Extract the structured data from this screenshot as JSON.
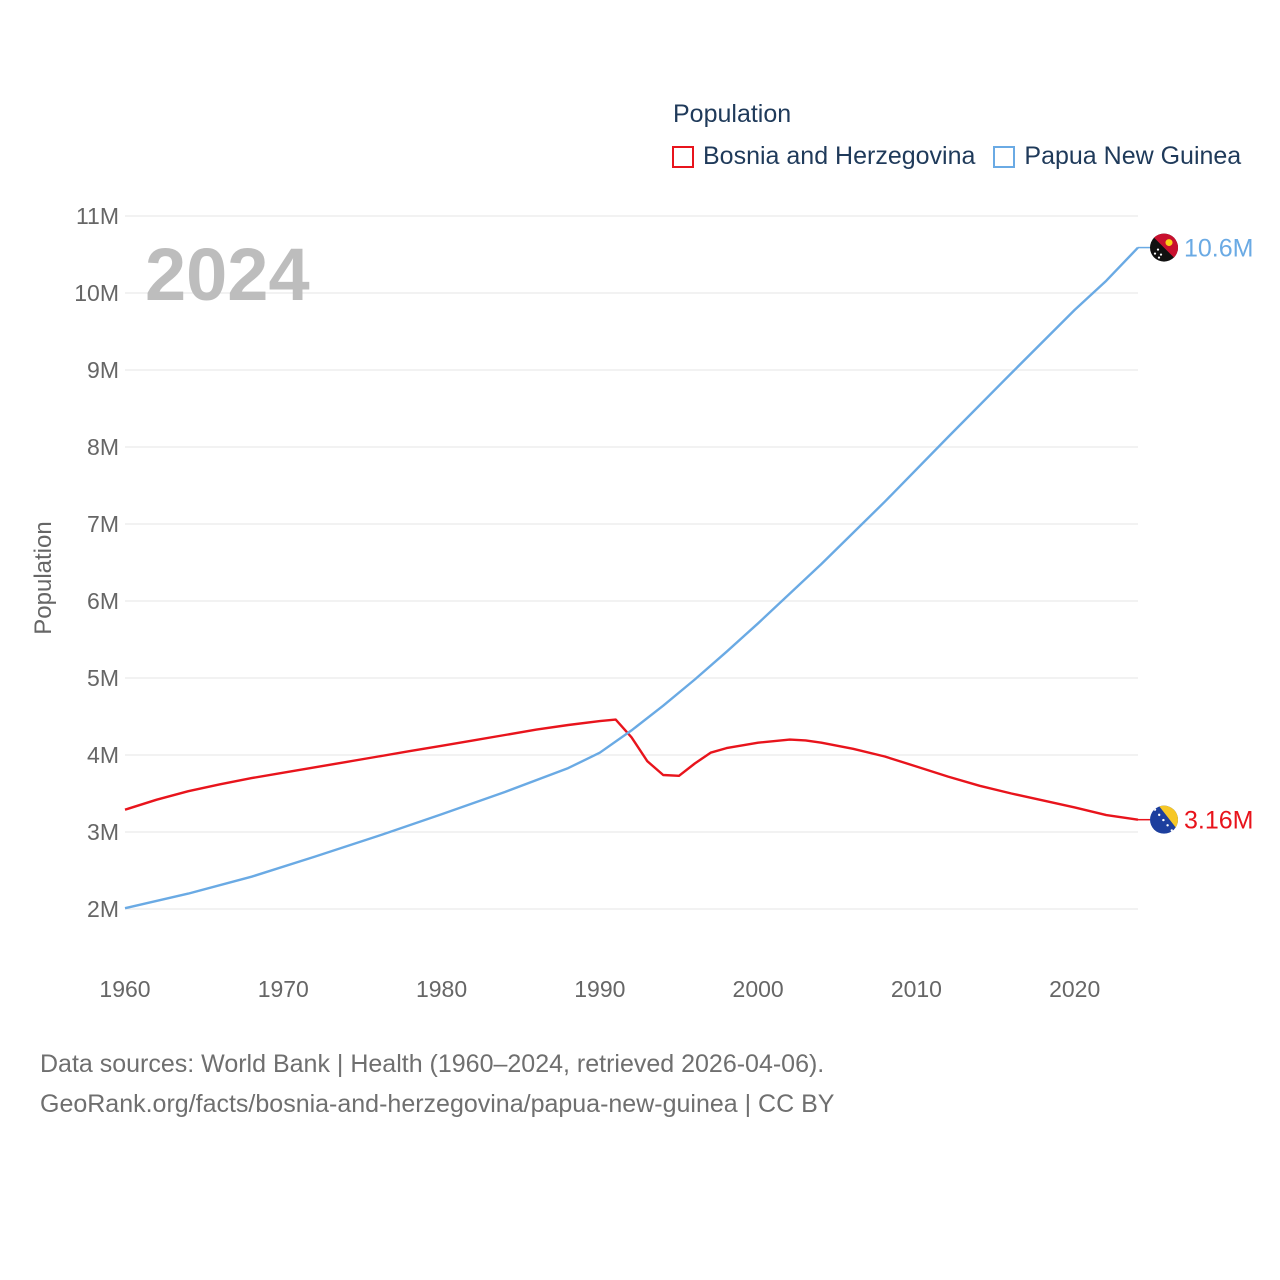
{
  "chart_data": {
    "type": "line",
    "title": "Population",
    "ylabel": "Population",
    "xlabel": "",
    "xlim": [
      1960,
      2024
    ],
    "ylim": [
      2000000,
      11000000
    ],
    "x_ticks": [
      1960,
      1970,
      1980,
      1990,
      2000,
      2010,
      2020
    ],
    "y_ticks": [
      {
        "value": 2000000,
        "label": "2M"
      },
      {
        "value": 3000000,
        "label": "3M"
      },
      {
        "value": 4000000,
        "label": "4M"
      },
      {
        "value": 5000000,
        "label": "5M"
      },
      {
        "value": 6000000,
        "label": "6M"
      },
      {
        "value": 7000000,
        "label": "7M"
      },
      {
        "value": 8000000,
        "label": "8M"
      },
      {
        "value": 9000000,
        "label": "9M"
      },
      {
        "value": 10000000,
        "label": "10M"
      },
      {
        "value": 11000000,
        "label": "11M"
      }
    ],
    "grid": true,
    "legend_position": "top-right",
    "year_watermark": "2024",
    "series": [
      {
        "name": "Bosnia and Herzegovina",
        "color": "#e8141c",
        "end_label": "3.16M",
        "flag_icon": "bosnia-herzegovina-flag-icon",
        "x": [
          1960,
          1962,
          1964,
          1966,
          1968,
          1970,
          1972,
          1974,
          1976,
          1978,
          1980,
          1982,
          1984,
          1986,
          1988,
          1990,
          1991,
          1992,
          1993,
          1994,
          1995,
          1996,
          1997,
          1998,
          2000,
          2002,
          2003,
          2004,
          2006,
          2008,
          2010,
          2012,
          2014,
          2016,
          2018,
          2020,
          2022,
          2024
        ],
        "values": [
          3290000,
          3420000,
          3530000,
          3620000,
          3700000,
          3770000,
          3840000,
          3910000,
          3980000,
          4050000,
          4120000,
          4190000,
          4260000,
          4330000,
          4390000,
          4440000,
          4460000,
          4230000,
          3920000,
          3740000,
          3730000,
          3890000,
          4030000,
          4090000,
          4160000,
          4200000,
          4190000,
          4160000,
          4080000,
          3980000,
          3850000,
          3720000,
          3600000,
          3500000,
          3410000,
          3320000,
          3220000,
          3160000
        ]
      },
      {
        "name": "Papua New Guinea",
        "color": "#6aaae4",
        "end_label": "10.6M",
        "flag_icon": "papua-new-guinea-flag-icon",
        "x": [
          1960,
          1964,
          1968,
          1972,
          1976,
          1980,
          1984,
          1988,
          1990,
          1992,
          1994,
          1996,
          1998,
          2000,
          2004,
          2008,
          2012,
          2016,
          2020,
          2022,
          2024
        ],
        "values": [
          2010000,
          2200000,
          2420000,
          2680000,
          2950000,
          3230000,
          3520000,
          3830000,
          4030000,
          4320000,
          4640000,
          4980000,
          5340000,
          5710000,
          6480000,
          7290000,
          8130000,
          8960000,
          9780000,
          10160000,
          10590000
        ]
      }
    ]
  },
  "footer": {
    "line1": "Data sources: World Bank | Health (1960–2024, retrieved 2026-04-06).",
    "line2": "GeoRank.org/facts/bosnia-and-herzegovina/papua-new-guinea | CC BY"
  }
}
